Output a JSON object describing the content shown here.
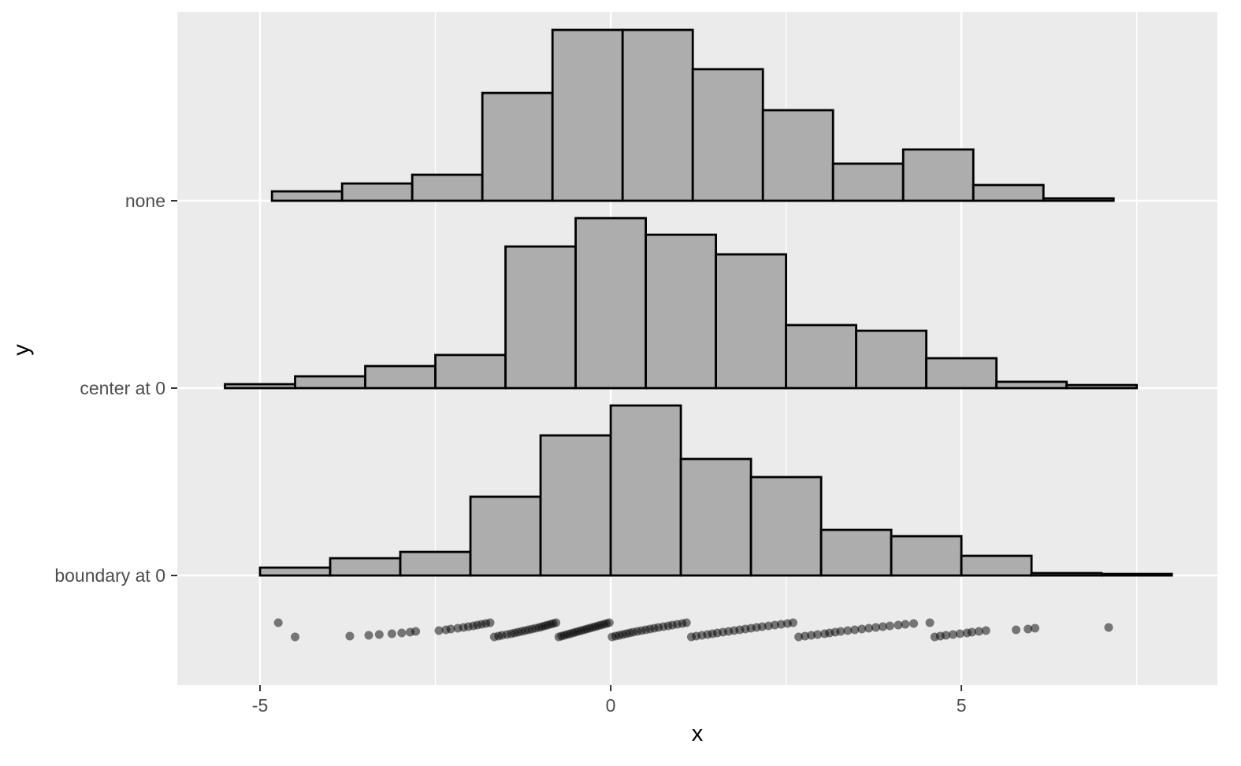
{
  "chart_data": {
    "type": "bar",
    "subtype": "histogram-rows-with-rug",
    "title": "",
    "xlabel": "x",
    "ylabel": "y",
    "grid": true,
    "legend": "none",
    "xlim": [
      -6.18,
      8.65
    ],
    "x_ticks": [
      {
        "value": -5,
        "label": "-5"
      },
      {
        "value": 0,
        "label": "0"
      },
      {
        "value": 5,
        "label": "5"
      }
    ],
    "x_minor_ticks": [
      -2.5,
      2.5,
      7.5
    ],
    "rows": [
      {
        "label": "none",
        "bin_start": -4.83,
        "bin_width": 1,
        "heights": [
          0.055,
          0.101,
          0.152,
          0.631,
          1.0,
          1.0,
          0.77,
          0.53,
          0.217,
          0.3,
          0.092,
          0.014
        ]
      },
      {
        "label": "center at 0",
        "bin_start": -5.5,
        "bin_width": 1,
        "heights": [
          0.023,
          0.069,
          0.129,
          0.194,
          0.829,
          0.995,
          0.898,
          0.783,
          0.369,
          0.336,
          0.175,
          0.037,
          0.018
        ]
      },
      {
        "label": "boundary at 0",
        "bin_start": -5.0,
        "bin_width": 1,
        "heights": [
          0.046,
          0.101,
          0.138,
          0.461,
          0.82,
          0.995,
          0.682,
          0.576,
          0.267,
          0.23,
          0.115,
          0.014,
          0.009
        ]
      }
    ],
    "rug_points_x": [
      -4.74,
      -4.5,
      -3.72,
      -3.45,
      -3.3,
      -3.12,
      -2.98,
      -2.86,
      -2.78,
      -2.45,
      -2.35,
      -2.28,
      -2.18,
      -2.1,
      -2.03,
      -1.96,
      -1.9,
      -1.84,
      -1.78,
      -1.72,
      -1.66,
      -1.6,
      -1.55,
      -1.48,
      -1.42,
      -1.37,
      -1.32,
      -1.27,
      -1.22,
      -1.17,
      -1.12,
      -1.07,
      -1.02,
      -0.98,
      -0.94,
      -0.9,
      -0.86,
      -0.82,
      -0.78,
      -0.74,
      -0.7,
      -0.66,
      -0.62,
      -0.58,
      -0.54,
      -0.5,
      -0.46,
      -0.42,
      -0.38,
      -0.34,
      -0.3,
      -0.26,
      -0.22,
      -0.18,
      -0.14,
      -0.1,
      -0.06,
      -0.02,
      0.02,
      0.07,
      0.12,
      0.17,
      0.22,
      0.27,
      0.32,
      0.38,
      0.44,
      0.5,
      0.56,
      0.62,
      0.68,
      0.75,
      0.82,
      0.88,
      0.95,
      1.02,
      1.08,
      1.15,
      1.22,
      1.3,
      1.38,
      1.45,
      1.52,
      1.6,
      1.68,
      1.76,
      1.84,
      1.92,
      2.0,
      2.08,
      2.16,
      2.25,
      2.34,
      2.43,
      2.52,
      2.6,
      2.68,
      2.77,
      2.86,
      2.95,
      3.05,
      3.12,
      3.2,
      3.28,
      3.38,
      3.48,
      3.58,
      3.68,
      3.78,
      3.88,
      3.98,
      4.1,
      4.2,
      4.32,
      4.55,
      4.62,
      4.7,
      4.78,
      4.88,
      4.98,
      5.08,
      5.15,
      5.25,
      5.35,
      5.78,
      5.95,
      6.05,
      7.1
    ],
    "colors": {
      "panel_bg": "#EBEBEB",
      "grid": "#FFFFFF",
      "bar_fill": "#ADADAD",
      "bar_stroke": "#000000",
      "point": "#000000",
      "tick_label": "#4D4D4D",
      "axis_tick": "#333333",
      "axis_title": "#000000"
    }
  }
}
